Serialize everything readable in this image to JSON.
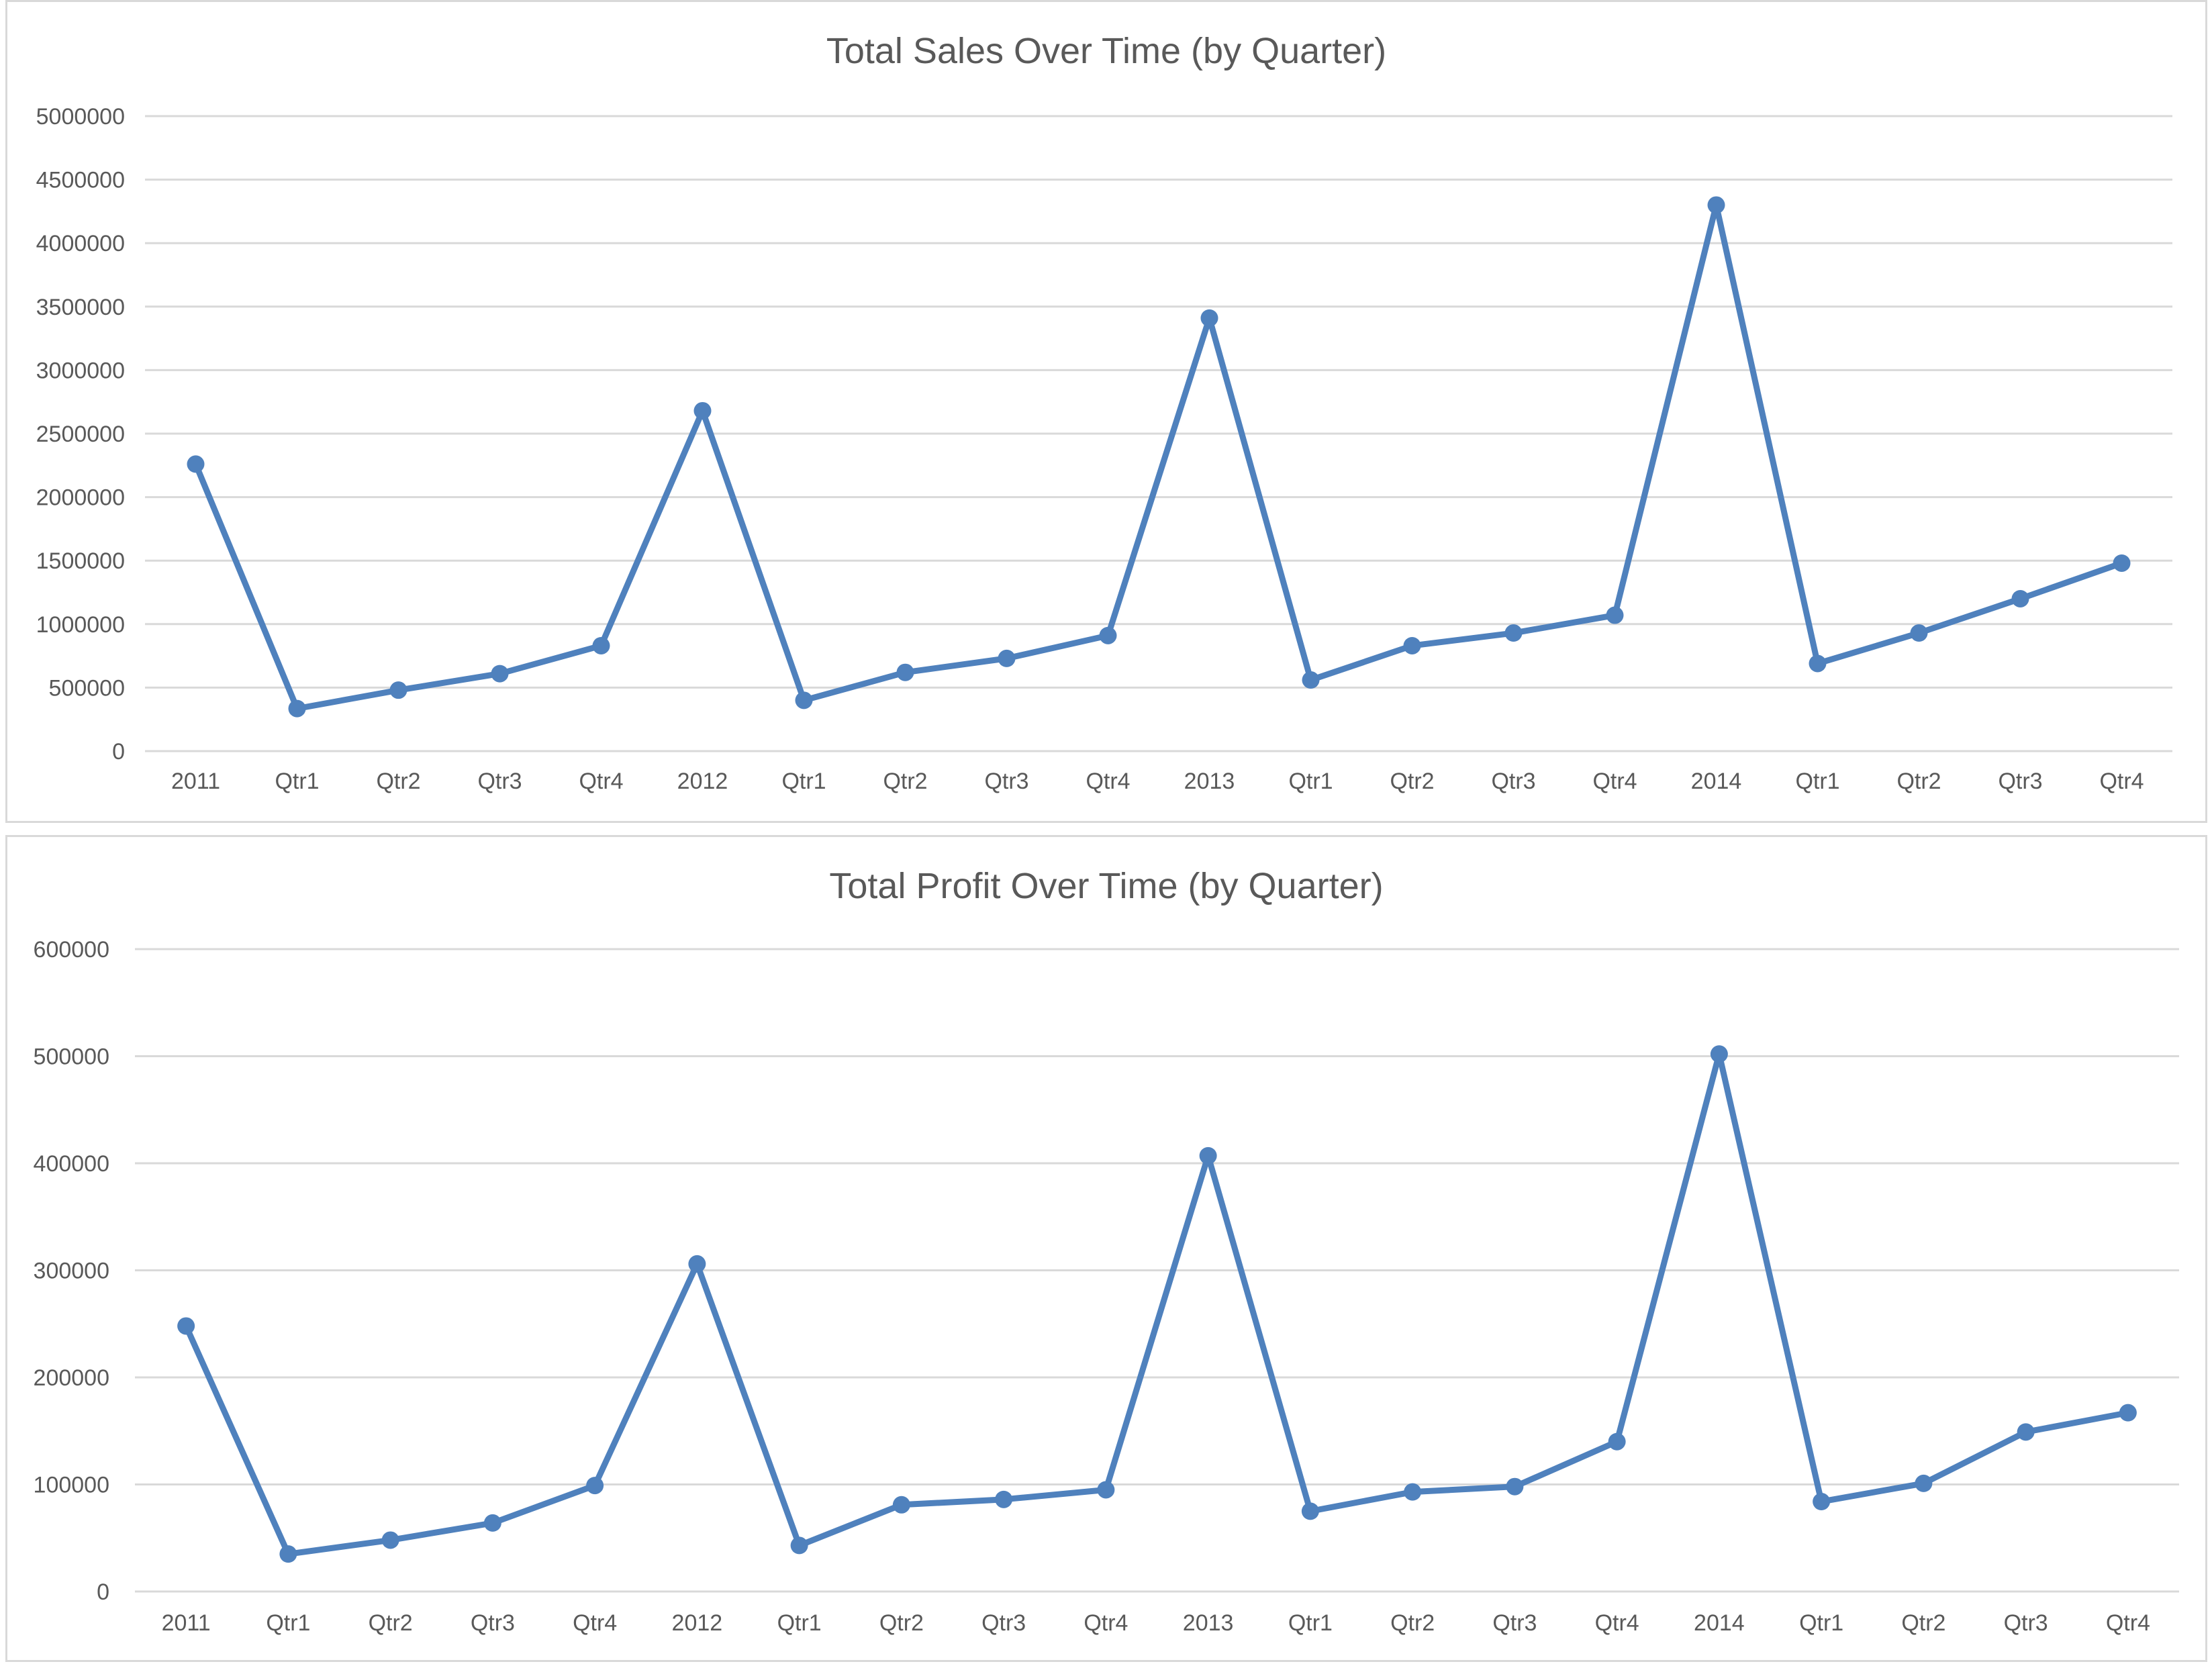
{
  "chart_data": [
    {
      "type": "line",
      "title": "Total Sales Over Time (by Quarter)",
      "xlabel": "",
      "ylabel": "",
      "categories": [
        "2011",
        "Qtr1",
        "Qtr2",
        "Qtr3",
        "Qtr4",
        "2012",
        "Qtr1",
        "Qtr2",
        "Qtr3",
        "Qtr4",
        "2013",
        "Qtr1",
        "Qtr2",
        "Qtr3",
        "Qtr4",
        "2014",
        "Qtr1",
        "Qtr2",
        "Qtr3",
        "Qtr4"
      ],
      "series": [
        {
          "values": [
            2260000,
            335000,
            480000,
            610000,
            830000,
            2680000,
            400000,
            620000,
            730000,
            910000,
            3410000,
            560000,
            830000,
            930000,
            1070000,
            4300000,
            690000,
            930000,
            1200000,
            1480000
          ]
        }
      ],
      "ylim": [
        0,
        5000000
      ],
      "yticks": [
        "0",
        "500000",
        "1000000",
        "1500000",
        "2000000",
        "2500000",
        "3000000",
        "3500000",
        "4000000",
        "4500000",
        "5000000"
      ],
      "grid": true,
      "legend": "none",
      "line_color": "#4f81bd"
    },
    {
      "type": "line",
      "title": "Total Profit Over Time (by Quarter)",
      "xlabel": "",
      "ylabel": "",
      "categories": [
        "2011",
        "Qtr1",
        "Qtr2",
        "Qtr3",
        "Qtr4",
        "2012",
        "Qtr1",
        "Qtr2",
        "Qtr3",
        "Qtr4",
        "2013",
        "Qtr1",
        "Qtr2",
        "Qtr3",
        "Qtr4",
        "2014",
        "Qtr1",
        "Qtr2",
        "Qtr3",
        "Qtr4"
      ],
      "series": [
        {
          "values": [
            248000,
            35000,
            48000,
            64000,
            99000,
            306000,
            43000,
            81000,
            86000,
            95000,
            407000,
            75000,
            93000,
            98000,
            140000,
            502000,
            84000,
            101000,
            149000,
            167000
          ]
        }
      ],
      "ylim": [
        0,
        600000
      ],
      "yticks": [
        "0",
        "100000",
        "200000",
        "300000",
        "400000",
        "500000",
        "600000"
      ],
      "grid": true,
      "legend": "none",
      "line_color": "#4f81bd"
    }
  ],
  "colors": {
    "line": "#4f81bd",
    "grid": "#d9d9d9",
    "text": "#595959",
    "border": "#d9d9d9"
  }
}
